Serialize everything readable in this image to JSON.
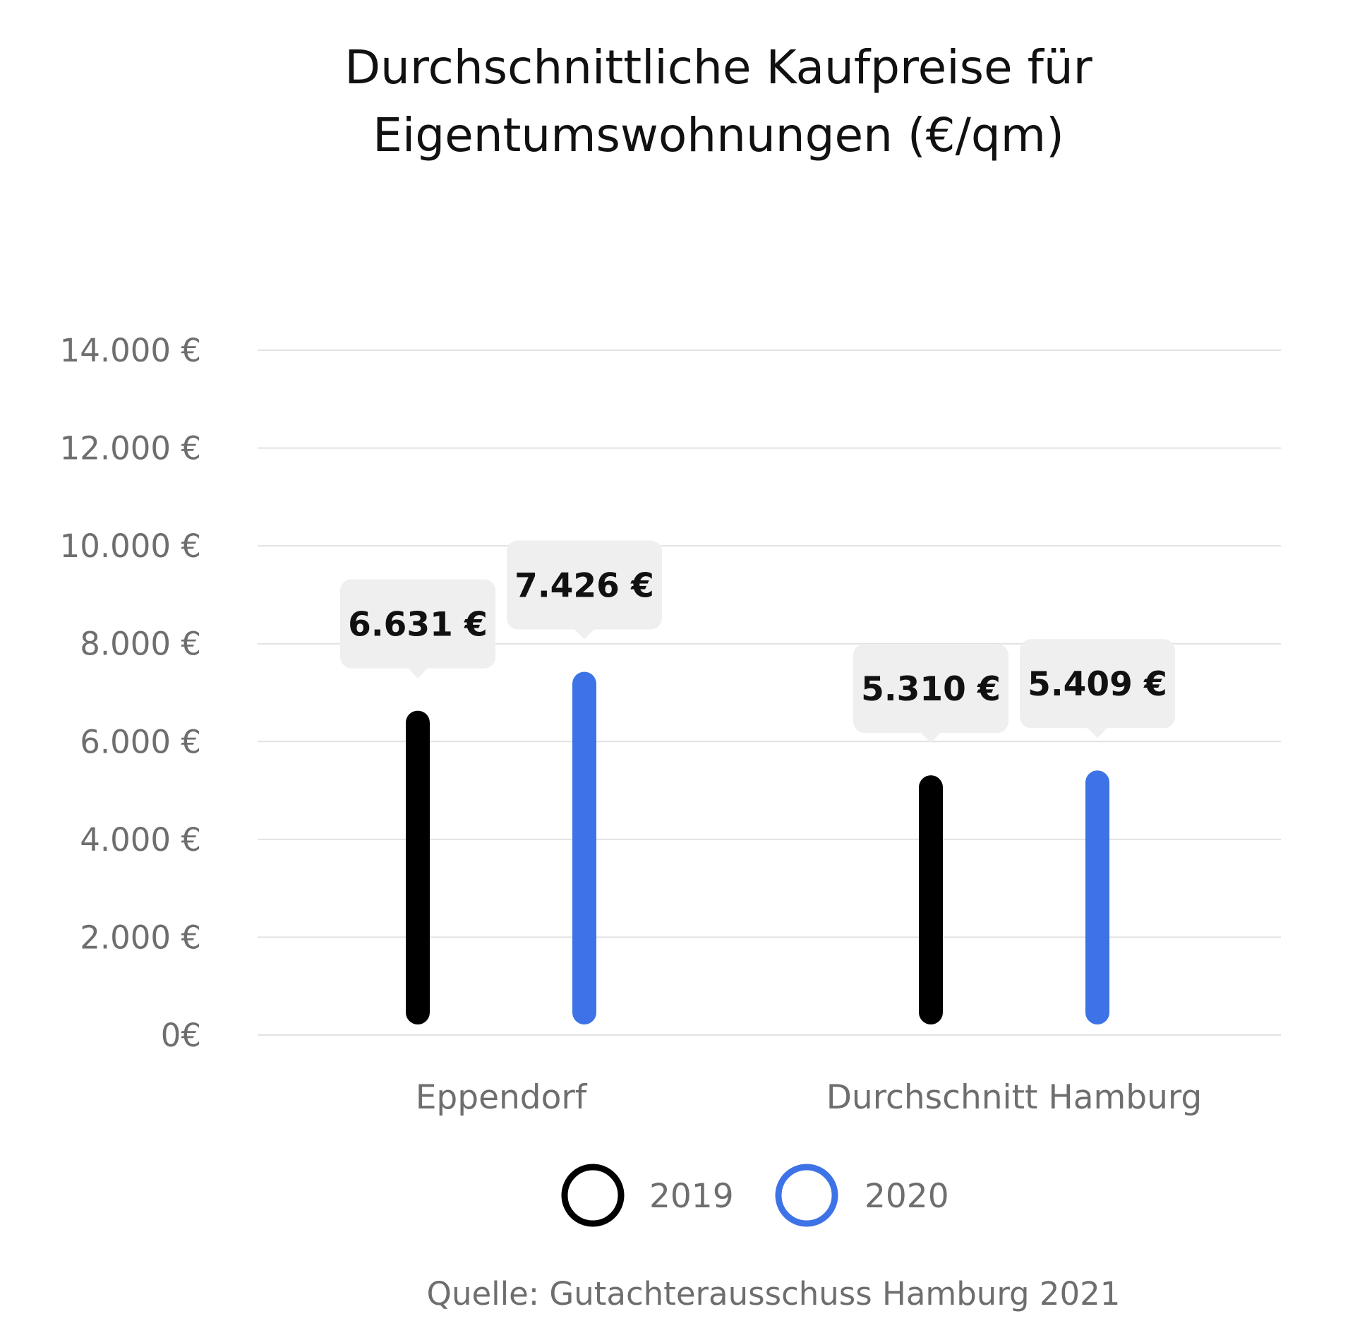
{
  "colors": {
    "series_2019": "#000000",
    "series_2020": "#3D73E6",
    "tooltip_bg": "#EFEFEF",
    "grid": "#E2E2E2",
    "axis_text": "#6E6E6E",
    "title_text": "#111111"
  },
  "chart_data": {
    "type": "bar",
    "title_lines": [
      "Durchschnittliche Kaufpreise für",
      "Eigentumswohnungen (€/qm)"
    ],
    "categories": [
      "Eppendorf",
      "Durchschnitt Hamburg"
    ],
    "series": [
      {
        "name": "2019",
        "values": [
          6631,
          5310
        ],
        "labels": [
          "6.631 €",
          "5.310 €"
        ]
      },
      {
        "name": "2020",
        "values": [
          7426,
          5409
        ],
        "labels": [
          "7.426 €",
          "5.409 €"
        ]
      }
    ],
    "ylim": [
      0,
      14000
    ],
    "yticks": [
      0,
      2000,
      4000,
      6000,
      8000,
      10000,
      12000,
      14000
    ],
    "ytick_labels": [
      "0€",
      "2.000 €",
      "4.000 €",
      "6.000 €",
      "8.000 €",
      "10.000 €",
      "12.000 €",
      "14.000 €"
    ],
    "grid": true,
    "legend_position": "bottom",
    "source": "Quelle: Gutachterausschuss Hamburg 2021"
  }
}
